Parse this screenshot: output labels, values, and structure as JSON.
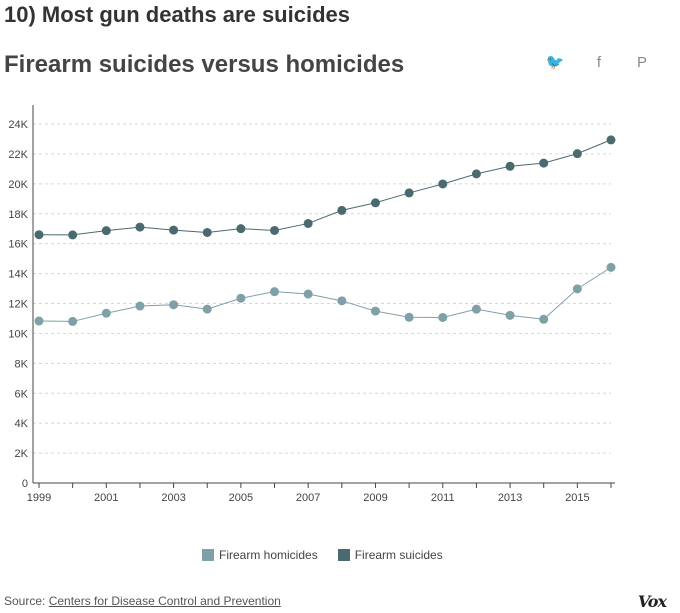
{
  "header": {
    "headline": "10) Most gun deaths are suicides",
    "title": "Firearm suicides versus homicides"
  },
  "share": {
    "twitter_icon": "twitter-icon",
    "facebook_icon": "facebook-icon",
    "pinterest_icon": "pinterest-icon",
    "twitter_glyph": "🐦",
    "facebook_glyph": "f",
    "pinterest_glyph": "P"
  },
  "chart_data": {
    "type": "line",
    "title": "Firearm suicides versus homicides",
    "xlabel": "",
    "ylabel": "",
    "x": [
      1999,
      2000,
      2001,
      2002,
      2003,
      2004,
      2005,
      2006,
      2007,
      2008,
      2009,
      2010,
      2011,
      2012,
      2013,
      2014,
      2015,
      2016
    ],
    "x_tick_labels": [
      "1999",
      "2001",
      "2003",
      "2005",
      "2007",
      "2009",
      "2011",
      "2013",
      "2015"
    ],
    "y_tick_labels": [
      "0",
      "2K",
      "4K",
      "6K",
      "8K",
      "10K",
      "12K",
      "14K",
      "16K",
      "18K",
      "20K",
      "22K",
      "24K"
    ],
    "ylim": [
      0,
      24000
    ],
    "grid": true,
    "legend_position": "bottom",
    "series": [
      {
        "name": "Firearm homicides",
        "color": "#7fa0a6",
        "values": [
          10828,
          10801,
          11348,
          11829,
          11920,
          11624,
          12352,
          12791,
          12632,
          12179,
          11493,
          11078,
          11068,
          11622,
          11208,
          10945,
          12979,
          14415
        ]
      },
      {
        "name": "Firearm suicides",
        "color": "#4a6a70",
        "values": [
          16599,
          16586,
          16869,
          17108,
          16907,
          16750,
          17002,
          16883,
          17352,
          18223,
          18735,
          19392,
          19990,
          20666,
          21175,
          21386,
          22018,
          22938
        ]
      }
    ]
  },
  "legend": {
    "items": [
      "Firearm homicides",
      "Firearm suicides"
    ]
  },
  "footer": {
    "source_prefix": "Source: ",
    "source_link": "Centers for Disease Control and Prevention",
    "logo": "Vox"
  }
}
